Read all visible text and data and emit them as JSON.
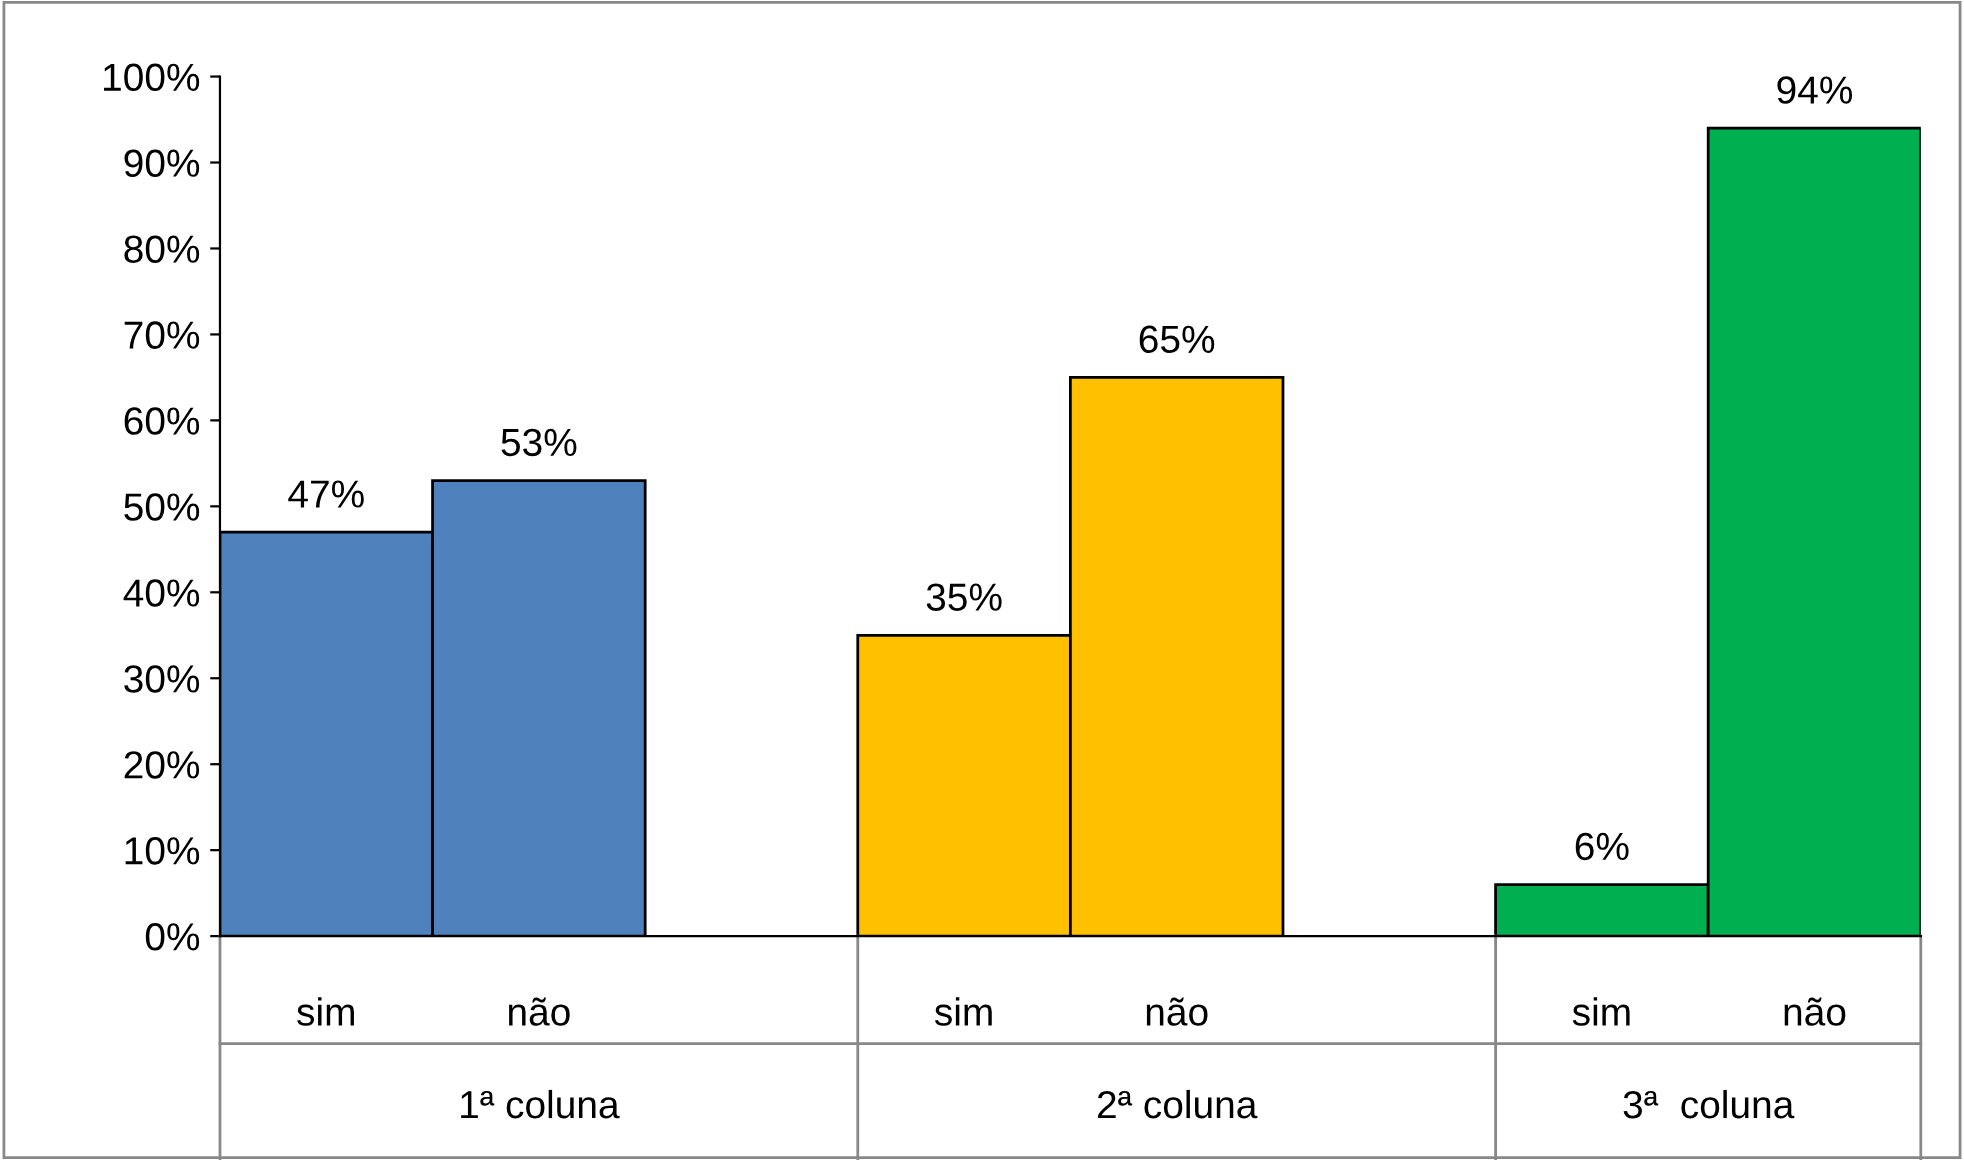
{
  "chart_data": {
    "type": "bar",
    "categories": [
      "sim",
      "não",
      "sim",
      "não",
      "sim",
      "não"
    ],
    "values": [
      47,
      53,
      35,
      65,
      6,
      94
    ],
    "colors": [
      "#4f81bd",
      "#4f81bd",
      "#ffc000",
      "#ffc000",
      "#00b050",
      "#00b050"
    ],
    "value_labels": [
      "47%",
      "53%",
      "35%",
      "65%",
      "6%",
      "94%"
    ],
    "annotations": [
      "1ª coluna",
      "2ª coluna",
      "3ª  coluna"
    ],
    "ylim": [
      0,
      100
    ],
    "yticks": [
      {
        "value": 0,
        "label": "0%"
      },
      {
        "value": 10,
        "label": "10%"
      },
      {
        "value": 20,
        "label": "20%"
      },
      {
        "value": 30,
        "label": "30%"
      },
      {
        "value": 40,
        "label": "40%"
      },
      {
        "value": 50,
        "label": "50%"
      },
      {
        "value": 60,
        "label": "60%"
      },
      {
        "value": 70,
        "label": "70%"
      },
      {
        "value": 80,
        "label": "80%"
      },
      {
        "value": 90,
        "label": "90%"
      },
      {
        "value": 100,
        "label": "100%"
      }
    ],
    "grid": false,
    "legend": false
  }
}
